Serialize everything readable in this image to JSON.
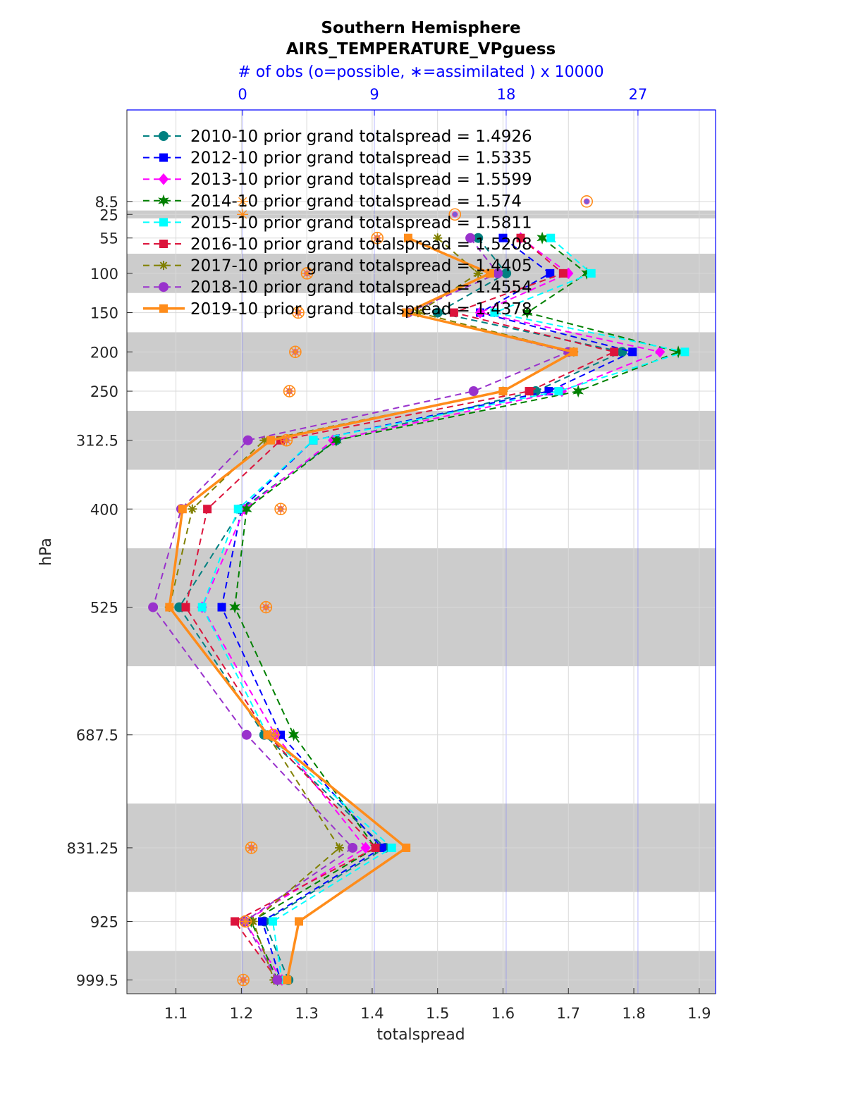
{
  "title": {
    "line1": "Southern Hemisphere",
    "line2": "AIRS_TEMPERATURE_VPguess",
    "obs_label": "# of obs (o=possible, ∗=assimilated ) x 10000"
  },
  "colors": {
    "frame": "#262626",
    "top_axis": "#0000ff",
    "band": "#cccccc",
    "obs_marker": "#ff8c1a"
  },
  "chart_data": {
    "type": "line",
    "xlabel": "totalspread",
    "ylabel": "hPa",
    "xlim": [
      1.025,
      1.925
    ],
    "x_ticks": [
      1.1,
      1.2,
      1.3,
      1.4,
      1.5,
      1.6,
      1.7,
      1.8,
      1.9
    ],
    "x_tick_labels": [
      "1.1",
      "1.2",
      "1.3",
      "1.4",
      "1.5",
      "1.6",
      "1.7",
      "1.8",
      "1.9"
    ],
    "top_axis": {
      "label": "# of obs (o=possible, ∗=assimilated ) x 10000",
      "ticks": [
        0,
        9,
        18,
        27
      ],
      "tick_labels": [
        "0",
        "9",
        "18",
        "27"
      ],
      "range": [
        -7.9,
        32.3
      ]
    },
    "y_scale": "pressure, increasing downward",
    "ylim": [
      -108,
      1017
    ],
    "levels": [
      8.5,
      25,
      55,
      100,
      150,
      200,
      250,
      312.5,
      400,
      525,
      687.5,
      831.25,
      925,
      999.5
    ],
    "level_labels": [
      "8.5",
      "25",
      "55",
      "100",
      "150",
      "200",
      "250",
      "312.5",
      "400",
      "525",
      "687.5",
      "831.25",
      "925",
      "999.5"
    ],
    "shaded_layers": [
      [
        20,
        30
      ],
      [
        75,
        125
      ],
      [
        175,
        225
      ],
      [
        275,
        350
      ],
      [
        450,
        600
      ],
      [
        775,
        887.5
      ],
      [
        962.5,
        1017
      ]
    ],
    "grid": true,
    "legend_location": "top-left",
    "series": [
      {
        "name": "2010-10 prior grand totalspread = 1.4926",
        "color": "#008080",
        "marker": "circle",
        "linestyle": "dashed",
        "values": [
          null,
          null,
          1.562,
          1.605,
          1.5,
          1.782,
          1.65,
          1.345,
          1.2,
          1.105,
          1.235,
          1.42,
          1.235,
          1.272
        ]
      },
      {
        "name": "2012-10 prior grand totalspread = 1.5335",
        "color": "#0000ff",
        "marker": "square",
        "linestyle": "dashed",
        "values": [
          null,
          null,
          1.6,
          1.672,
          1.565,
          1.798,
          1.67,
          1.31,
          1.2,
          1.17,
          1.26,
          1.415,
          1.232,
          1.26
        ]
      },
      {
        "name": "2013-10 prior grand totalspread = 1.5599",
        "color": "#ff00ff",
        "marker": "diamond",
        "linestyle": "dashed",
        "values": [
          null,
          null,
          1.627,
          1.7,
          1.565,
          1.84,
          1.69,
          1.34,
          1.205,
          1.14,
          1.252,
          1.39,
          1.205,
          1.262
        ]
      },
      {
        "name": "2014-10 prior grand totalspread = 1.574",
        "color": "#008000",
        "marker": "hexagram",
        "linestyle": "dashed",
        "values": [
          null,
          null,
          1.66,
          1.728,
          1.637,
          1.868,
          1.715,
          1.345,
          1.208,
          1.19,
          1.28,
          1.405,
          1.215,
          1.255
        ]
      },
      {
        "name": "2015-10 prior grand totalspread = 1.5811",
        "color": "#00ffff",
        "marker": "square",
        "linestyle": "dashed",
        "values": [
          null,
          null,
          1.673,
          1.735,
          1.587,
          1.878,
          1.685,
          1.31,
          1.195,
          1.14,
          1.24,
          1.43,
          1.248,
          1.262
        ]
      },
      {
        "name": "2016-10 prior grand totalspread = 1.5208",
        "color": "#dc143c",
        "marker": "square",
        "linestyle": "dashed",
        "values": [
          null,
          null,
          1.627,
          1.692,
          1.525,
          1.77,
          1.64,
          1.26,
          1.148,
          1.115,
          1.24,
          1.405,
          1.19,
          1.255
        ]
      },
      {
        "name": "2017-10 prior grand totalspread = 1.4405",
        "color": "#808000",
        "marker": "asterisk",
        "linestyle": "dashed",
        "values": [
          null,
          null,
          1.5,
          1.562,
          1.47,
          1.708,
          1.6,
          1.235,
          1.125,
          1.09,
          1.24,
          1.35,
          1.218,
          1.25
        ]
      },
      {
        "name": "2018-10 prior grand totalspread = 1.4554",
        "color": "#9932cc",
        "marker": "circle",
        "linestyle": "dashed",
        "values": [
          null,
          null,
          1.55,
          1.592,
          1.455,
          1.7,
          1.555,
          1.21,
          1.108,
          1.065,
          1.208,
          1.37,
          1.205,
          1.255
        ]
      },
      {
        "name": "2019-10 prior grand totalspread = 1.4378",
        "color": "#ff8c1a",
        "marker": "square",
        "linestyle": "solid",
        "values": [
          null,
          null,
          1.455,
          1.58,
          1.452,
          1.708,
          1.6,
          1.245,
          1.11,
          1.09,
          1.24,
          1.452,
          1.288,
          1.27
        ]
      }
    ],
    "obs_counts_x10000": {
      "possible": [
        23.5,
        14.5,
        9.2,
        4.4,
        3.8,
        3.6,
        3.2,
        3.0,
        2.6,
        1.6,
        2.1,
        0.6,
        0.2,
        0.05
      ],
      "assimilated": [
        0.0,
        0.0,
        9.2,
        4.4,
        3.8,
        3.6,
        3.2,
        3.0,
        2.6,
        1.6,
        2.1,
        0.6,
        0.2,
        0.05
      ]
    }
  }
}
